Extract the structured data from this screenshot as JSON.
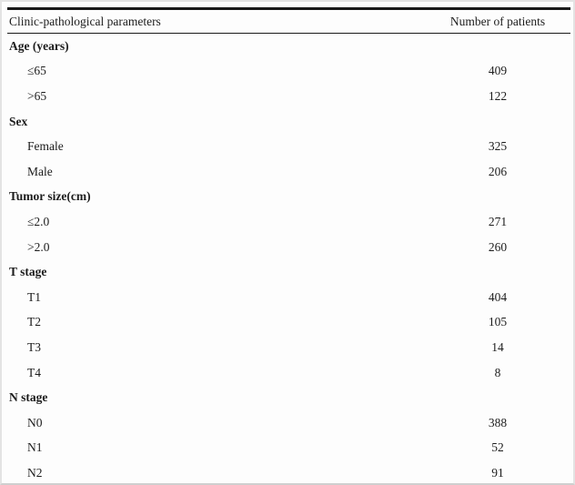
{
  "table": {
    "columns": [
      "Clinic-pathological parameters",
      "Number of patients"
    ],
    "rows": [
      {
        "label": "Age (years)",
        "value": "",
        "type": "group"
      },
      {
        "label": "≤65",
        "value": "409",
        "type": "item"
      },
      {
        "label": ">65",
        "value": "122",
        "type": "item"
      },
      {
        "label": "Sex",
        "value": "",
        "type": "group"
      },
      {
        "label": "Female",
        "value": "325",
        "type": "item"
      },
      {
        "label": "Male",
        "value": "206",
        "type": "item"
      },
      {
        "label": "Tumor size(cm)",
        "value": "",
        "type": "group"
      },
      {
        "label": "≤2.0",
        "value": "271",
        "type": "item"
      },
      {
        "label": ">2.0",
        "value": "260",
        "type": "item"
      },
      {
        "label": "T stage",
        "value": "",
        "type": "group"
      },
      {
        "label": "T1",
        "value": "404",
        "type": "item"
      },
      {
        "label": "T2",
        "value": "105",
        "type": "item"
      },
      {
        "label": "T3",
        "value": "14",
        "type": "item"
      },
      {
        "label": "T4",
        "value": "8",
        "type": "item"
      },
      {
        "label": "N stage",
        "value": "",
        "type": "group"
      },
      {
        "label": "N0",
        "value": "388",
        "type": "item"
      },
      {
        "label": "N1",
        "value": "52",
        "type": "item"
      },
      {
        "label": "N2",
        "value": "91",
        "type": "item"
      }
    ],
    "colors": {
      "rule": "#1a1a1a",
      "text": "#1c1c1c",
      "background": "#fdfdfd",
      "frame_border": "#e3e3e3"
    }
  }
}
